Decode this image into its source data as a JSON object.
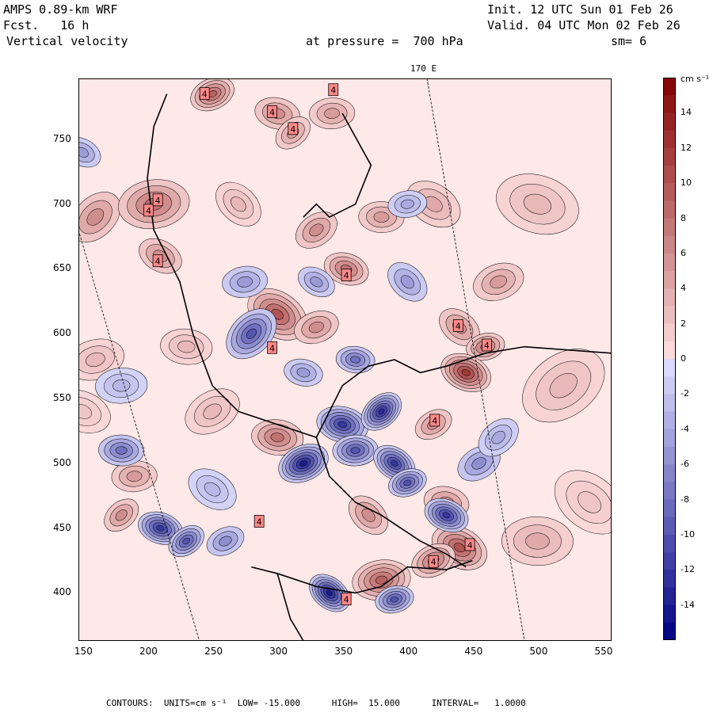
{
  "header": {
    "model": "AMPS 0.89-km WRF",
    "fcst": "Fcst.   16 h",
    "field": "Vertical velocity",
    "pressure": "at pressure =  700 hPa",
    "init": "Init. 12 UTC Sun 01 Feb 26",
    "valid": "Valid. 04 UTC Mon 02 Feb 26",
    "sm": "sm= 6"
  },
  "meridian_label": "170 E",
  "footer": "CONTOURS:  UNITS=cm s⁻¹  LOW= -15.000      HIGH=  15.000      INTERVAL=   1.0000",
  "chart_data": {
    "type": "heatmap",
    "title": "Vertical velocity",
    "units": "cm s-1",
    "xlim": [
      147,
      557
    ],
    "ylim": [
      363,
      797
    ],
    "x_ticks": [
      150,
      200,
      250,
      300,
      350,
      400,
      450,
      500,
      550
    ],
    "y_ticks": [
      400,
      450,
      500,
      550,
      600,
      650,
      700,
      750
    ],
    "colorbar": {
      "label": "cm s⁻¹",
      "range": [
        -16,
        16
      ],
      "ticks": [
        14,
        12,
        10,
        8,
        6,
        4,
        2,
        0,
        -2,
        -4,
        -6,
        -8,
        -10,
        -12,
        -14
      ]
    },
    "contours": {
      "low": -15.0,
      "high": 15.0,
      "interval": 1.0
    },
    "max_labels": [
      {
        "label": "4",
        "x": 244,
        "y": 785
      },
      {
        "label": "4",
        "x": 296,
        "y": 771
      },
      {
        "label": "4",
        "x": 312,
        "y": 758
      },
      {
        "label": "4",
        "x": 343,
        "y": 788
      },
      {
        "label": "4",
        "x": 201,
        "y": 695
      },
      {
        "label": "4",
        "x": 208,
        "y": 703
      },
      {
        "label": "4",
        "x": 208,
        "y": 656
      },
      {
        "label": "4",
        "x": 353,
        "y": 645
      },
      {
        "label": "4",
        "x": 296,
        "y": 589
      },
      {
        "label": "4",
        "x": 439,
        "y": 606
      },
      {
        "label": "4",
        "x": 461,
        "y": 591
      },
      {
        "label": "4",
        "x": 421,
        "y": 533
      },
      {
        "label": "4",
        "x": 286,
        "y": 455
      },
      {
        "label": "4",
        "x": 448,
        "y": 437
      },
      {
        "label": "4",
        "x": 420,
        "y": 424
      },
      {
        "label": "4",
        "x": 353,
        "y": 395
      }
    ],
    "upward_centers": [
      {
        "x": 160,
        "y": 690,
        "v": 6,
        "r": 18
      },
      {
        "x": 205,
        "y": 700,
        "v": 8,
        "r": 22
      },
      {
        "x": 210,
        "y": 660,
        "v": 6,
        "r": 14
      },
      {
        "x": 250,
        "y": 785,
        "v": 9,
        "r": 14
      },
      {
        "x": 300,
        "y": 770,
        "v": 6,
        "r": 14
      },
      {
        "x": 312,
        "y": 755,
        "v": 5,
        "r": 12
      },
      {
        "x": 342,
        "y": 770,
        "v": 5,
        "r": 14
      },
      {
        "x": 300,
        "y": 615,
        "v": 10,
        "r": 20
      },
      {
        "x": 330,
        "y": 605,
        "v": 6,
        "r": 14
      },
      {
        "x": 353,
        "y": 650,
        "v": 8,
        "r": 14
      },
      {
        "x": 330,
        "y": 680,
        "v": 6,
        "r": 14
      },
      {
        "x": 380,
        "y": 690,
        "v": 5,
        "r": 14
      },
      {
        "x": 440,
        "y": 605,
        "v": 6,
        "r": 14
      },
      {
        "x": 460,
        "y": 590,
        "v": 8,
        "r": 12
      },
      {
        "x": 445,
        "y": 570,
        "v": 12,
        "r": 16
      },
      {
        "x": 420,
        "y": 530,
        "v": 6,
        "r": 12
      },
      {
        "x": 300,
        "y": 520,
        "v": 8,
        "r": 16
      },
      {
        "x": 370,
        "y": 460,
        "v": 6,
        "r": 14
      },
      {
        "x": 380,
        "y": 410,
        "v": 9,
        "r": 18
      },
      {
        "x": 440,
        "y": 435,
        "v": 10,
        "r": 18
      },
      {
        "x": 420,
        "y": 425,
        "v": 8,
        "r": 14
      },
      {
        "x": 430,
        "y": 470,
        "v": 6,
        "r": 14
      },
      {
        "x": 180,
        "y": 460,
        "v": 6,
        "r": 12
      },
      {
        "x": 190,
        "y": 490,
        "v": 5,
        "r": 14
      },
      {
        "x": 420,
        "y": 700,
        "v": 4,
        "r": 18
      },
      {
        "x": 470,
        "y": 640,
        "v": 5,
        "r": 16
      },
      {
        "x": 500,
        "y": 700,
        "v": 3,
        "r": 26
      },
      {
        "x": 520,
        "y": 560,
        "v": 3,
        "r": 28
      },
      {
        "x": 500,
        "y": 440,
        "v": 4,
        "r": 22
      },
      {
        "x": 540,
        "y": 470,
        "v": 2,
        "r": 24
      },
      {
        "x": 160,
        "y": 580,
        "v": 3,
        "r": 18
      },
      {
        "x": 150,
        "y": 540,
        "v": 2,
        "r": 18
      },
      {
        "x": 250,
        "y": 540,
        "v": 3,
        "r": 18
      },
      {
        "x": 230,
        "y": 590,
        "v": 3,
        "r": 16
      },
      {
        "x": 270,
        "y": 700,
        "v": 3,
        "r": 16
      }
    ],
    "downward_centers": [
      {
        "x": 280,
        "y": 600,
        "v": -10,
        "r": 18
      },
      {
        "x": 275,
        "y": 640,
        "v": -5,
        "r": 14
      },
      {
        "x": 330,
        "y": 640,
        "v": -5,
        "r": 12
      },
      {
        "x": 320,
        "y": 500,
        "v": -14,
        "r": 16
      },
      {
        "x": 350,
        "y": 530,
        "v": -12,
        "r": 16
      },
      {
        "x": 380,
        "y": 540,
        "v": -13,
        "r": 14
      },
      {
        "x": 360,
        "y": 510,
        "v": -10,
        "r": 14
      },
      {
        "x": 390,
        "y": 500,
        "v": -12,
        "r": 14
      },
      {
        "x": 400,
        "y": 485,
        "v": -10,
        "r": 12
      },
      {
        "x": 210,
        "y": 450,
        "v": -12,
        "r": 14
      },
      {
        "x": 230,
        "y": 440,
        "v": -10,
        "r": 12
      },
      {
        "x": 180,
        "y": 510,
        "v": -8,
        "r": 14
      },
      {
        "x": 340,
        "y": 400,
        "v": -14,
        "r": 14
      },
      {
        "x": 390,
        "y": 395,
        "v": -10,
        "r": 12
      },
      {
        "x": 430,
        "y": 460,
        "v": -12,
        "r": 14
      },
      {
        "x": 455,
        "y": 500,
        "v": -6,
        "r": 14
      },
      {
        "x": 360,
        "y": 580,
        "v": -8,
        "r": 12
      },
      {
        "x": 400,
        "y": 640,
        "v": -5,
        "r": 14
      },
      {
        "x": 400,
        "y": 700,
        "v": -4,
        "r": 12
      },
      {
        "x": 150,
        "y": 740,
        "v": -5,
        "r": 12
      },
      {
        "x": 260,
        "y": 440,
        "v": -6,
        "r": 12
      },
      {
        "x": 320,
        "y": 570,
        "v": -5,
        "r": 12
      },
      {
        "x": 470,
        "y": 520,
        "v": -4,
        "r": 14
      },
      {
        "x": 180,
        "y": 560,
        "v": -3,
        "r": 16
      },
      {
        "x": 250,
        "y": 480,
        "v": -3,
        "r": 16
      }
    ]
  }
}
